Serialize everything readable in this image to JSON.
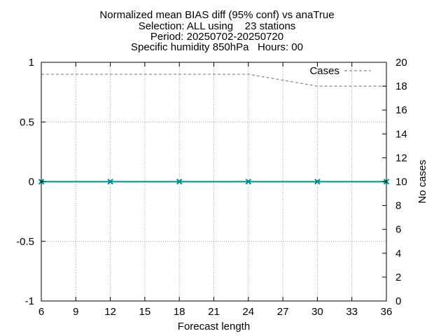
{
  "chart_data": {
    "type": "line",
    "title_lines": [
      "Normalized mean BIAS diff (95% conf) vs anaTrue",
      "Selection: ALL using    23 stations",
      "Period: 20250702-20250720",
      "Specific humidity 850hPa   Hours: 00"
    ],
    "xlabel": "Forecast length",
    "ylabel_left": "",
    "ylabel_right": "No cases",
    "xlim": [
      6,
      36
    ],
    "xticks": [
      "6",
      "9",
      "12",
      "15",
      "18",
      "21",
      "24",
      "27",
      "30",
      "33",
      "36"
    ],
    "ylim_left": [
      -1,
      1
    ],
    "yticks_left": [
      "-1",
      "-0.5",
      "0",
      "0.5",
      "1"
    ],
    "ylim_right": [
      0,
      20
    ],
    "yticks_right": [
      "0",
      "2",
      "4",
      "6",
      "8",
      "10",
      "12",
      "14",
      "16",
      "18",
      "20"
    ],
    "grid": true,
    "legend_position": "top-right",
    "series": [
      {
        "axis": "left",
        "color": "#008c8c",
        "marker": "x",
        "x": [
          6,
          12,
          18,
          24,
          30,
          36
        ],
        "values": [
          0,
          0,
          0,
          0,
          0,
          0
        ]
      },
      {
        "name": "Cases",
        "axis": "right",
        "color": "#888888",
        "dashed": true,
        "x": [
          6,
          12,
          18,
          24,
          27,
          30,
          36
        ],
        "values": [
          19,
          19,
          19,
          19,
          18.5,
          18,
          18
        ]
      }
    ]
  }
}
